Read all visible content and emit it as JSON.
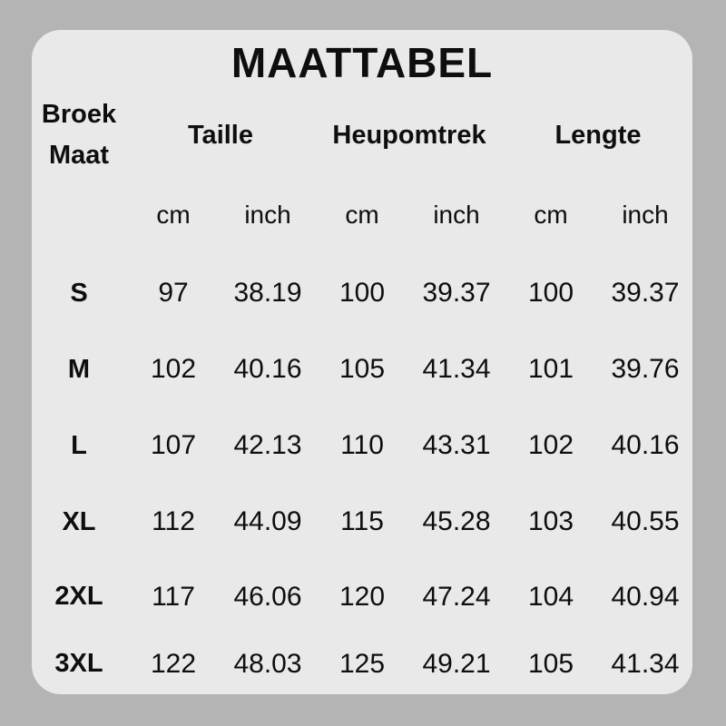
{
  "colors": {
    "page_background": "#b4b4b4",
    "card_background": "#e9e9e9",
    "text_color": "#0e0e0e"
  },
  "chart_data": {
    "type": "table",
    "title": "MAATTABEL",
    "row_header": {
      "line1": "Broek",
      "line2": "Maat"
    },
    "column_groups": [
      {
        "label": "Taille",
        "units": [
          "cm",
          "inch"
        ]
      },
      {
        "label": "Heupomtrek",
        "units": [
          "cm",
          "inch"
        ]
      },
      {
        "label": "Lengte",
        "units": [
          "cm",
          "inch"
        ]
      }
    ],
    "unit_row": [
      "cm",
      "inch",
      "cm",
      "inch",
      "cm",
      "inch"
    ],
    "rows": [
      {
        "size": "S",
        "values": [
          "97",
          "38.19",
          "100",
          "39.37",
          "100",
          "39.37"
        ]
      },
      {
        "size": "M",
        "values": [
          "102",
          "40.16",
          "105",
          "41.34",
          "101",
          "39.76"
        ]
      },
      {
        "size": "L",
        "values": [
          "107",
          "42.13",
          "110",
          "43.31",
          "102",
          "40.16"
        ]
      },
      {
        "size": "XL",
        "values": [
          "112",
          "44.09",
          "115",
          "45.28",
          "103",
          "40.55"
        ]
      },
      {
        "size": "2XL",
        "values": [
          "117",
          "46.06",
          "120",
          "47.24",
          "104",
          "40.94"
        ]
      },
      {
        "size": "3XL",
        "values": [
          "122",
          "48.03",
          "125",
          "49.21",
          "105",
          "41.34"
        ]
      }
    ]
  }
}
